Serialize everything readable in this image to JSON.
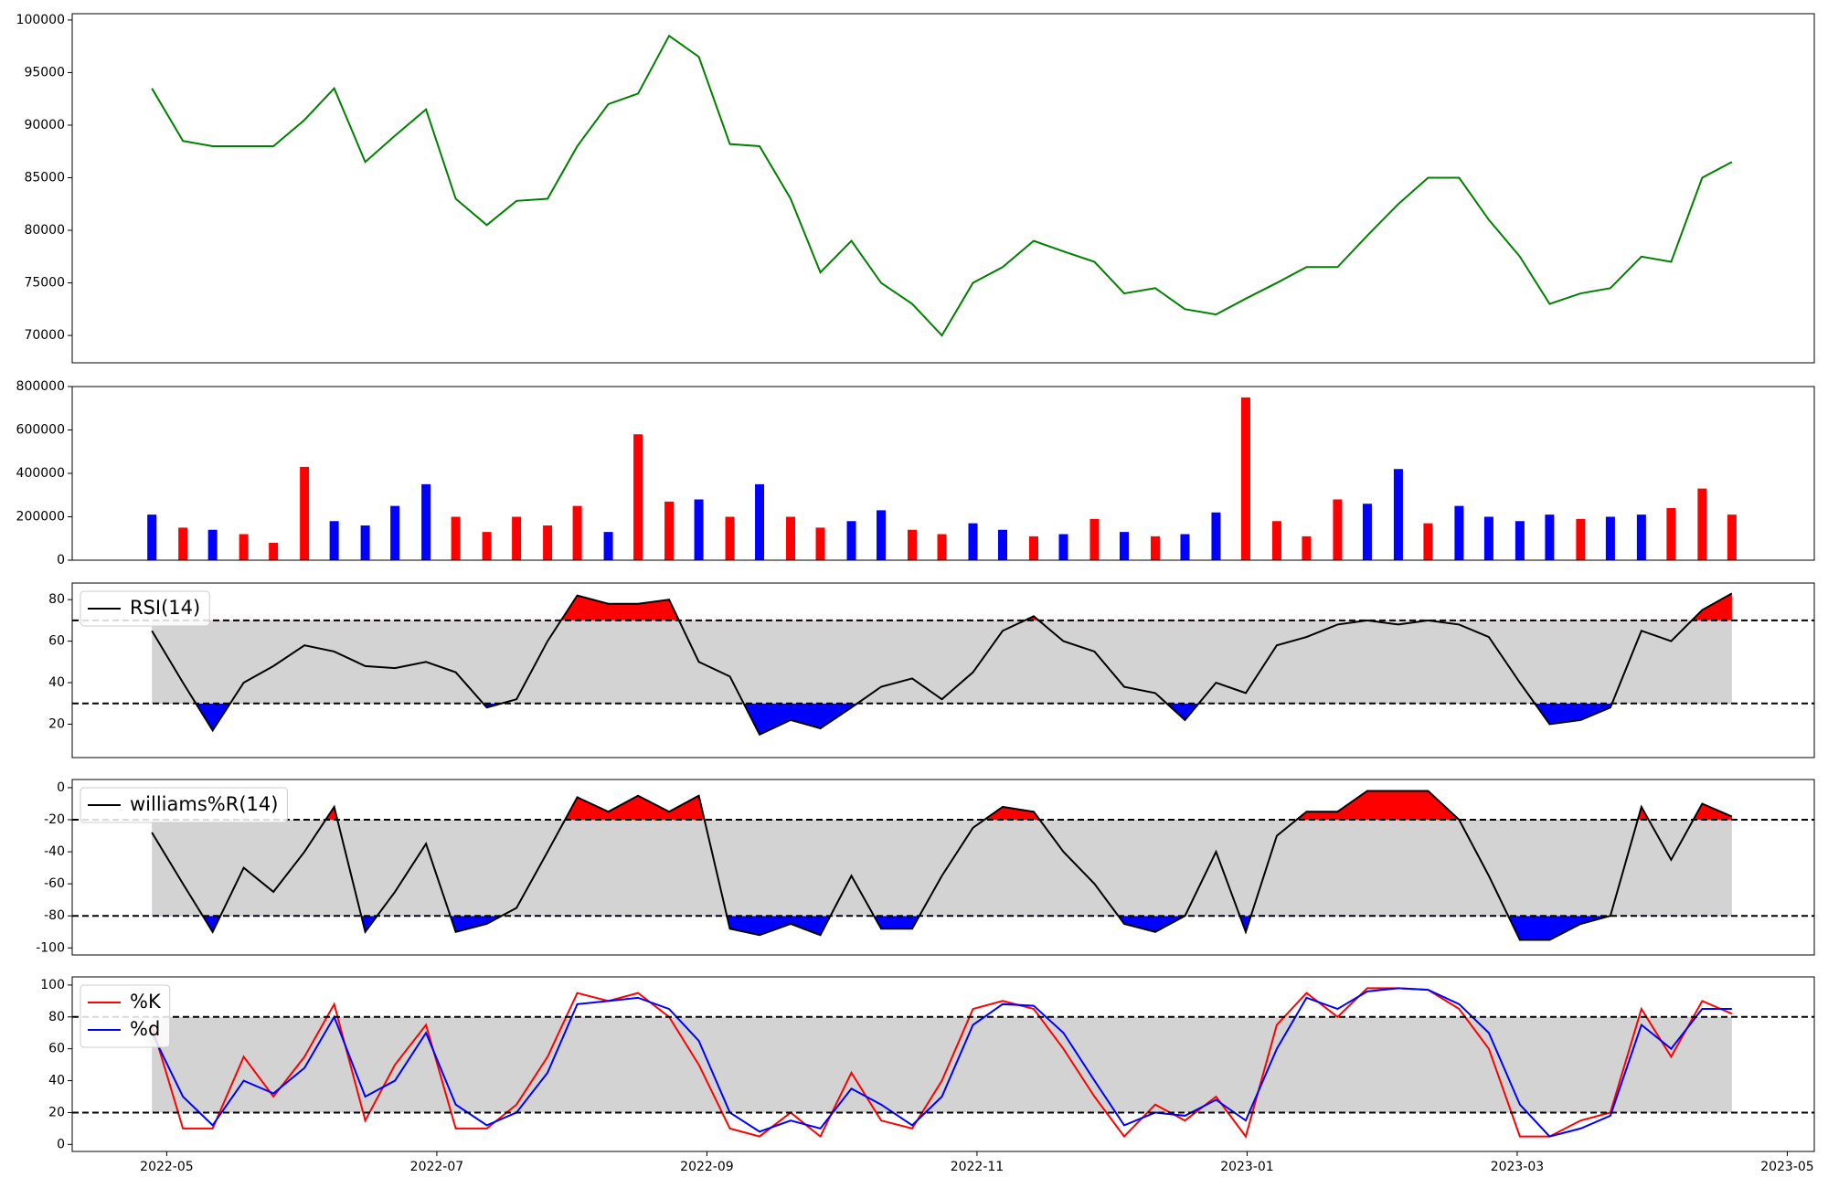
{
  "chart_data": [
    {
      "type": "line",
      "xlim": [
        -0.7,
        12.2
      ],
      "ylim": [
        67400,
        100600
      ],
      "yticks": [
        70000,
        75000,
        80000,
        85000,
        90000,
        95000,
        100000
      ],
      "x": [
        -0.11,
        0.12,
        0.34,
        0.57,
        0.79,
        1.02,
        1.24,
        1.47,
        1.69,
        1.92,
        2.14,
        2.37,
        2.59,
        2.82,
        3.04,
        3.27,
        3.49,
        3.72,
        3.94,
        4.17,
        4.39,
        4.62,
        4.84,
        5.07,
        5.29,
        5.52,
        5.74,
        5.97,
        6.19,
        6.42,
        6.64,
        6.87,
        7.09,
        7.32,
        7.54,
        7.77,
        7.99,
        8.22,
        8.44,
        8.67,
        8.89,
        9.12,
        9.34,
        9.57,
        9.79,
        10.02,
        10.24,
        10.47,
        10.69,
        10.92,
        11.14,
        11.37,
        11.59
      ],
      "series": [
        {
          "color": "#008000",
          "values": [
            93500,
            88500,
            88000,
            88000,
            88000,
            90500,
            93500,
            86500,
            89000,
            91500,
            83000,
            80500,
            82800,
            83000,
            88000,
            92000,
            93000,
            98500,
            96500,
            88200,
            88000,
            83000,
            76000,
            79000,
            75000,
            73000,
            70000,
            75000,
            76500,
            79000,
            78000,
            77000,
            74000,
            74500,
            72500,
            72000,
            73500,
            75000,
            76500,
            76500,
            79500,
            82500,
            85000,
            85000,
            81000,
            77500,
            73000,
            74000,
            74500,
            77500,
            77000,
            85000,
            86500
          ]
        }
      ]
    },
    {
      "type": "bar",
      "xlim": [
        -0.7,
        12.2
      ],
      "ylim": [
        0,
        800000
      ],
      "yticks": [
        0,
        200000,
        400000,
        600000,
        800000
      ],
      "x": [
        -0.11,
        0.12,
        0.34,
        0.57,
        0.79,
        1.02,
        1.24,
        1.47,
        1.69,
        1.92,
        2.14,
        2.37,
        2.59,
        2.82,
        3.04,
        3.27,
        3.49,
        3.72,
        3.94,
        4.17,
        4.39,
        4.62,
        4.84,
        5.07,
        5.29,
        5.52,
        5.74,
        5.97,
        6.19,
        6.42,
        6.64,
        6.87,
        7.09,
        7.32,
        7.54,
        7.77,
        7.99,
        8.22,
        8.44,
        8.67,
        8.89,
        9.12,
        9.34,
        9.57,
        9.79,
        10.02,
        10.24,
        10.47,
        10.69,
        10.92,
        11.14,
        11.37,
        11.59
      ],
      "series": [
        {
          "values": [
            210000,
            150000,
            140000,
            120000,
            80000,
            430000,
            180000,
            160000,
            250000,
            350000,
            200000,
            130000,
            200000,
            160000,
            250000,
            130000,
            580000,
            270000,
            280000,
            200000,
            350000,
            200000,
            150000,
            180000,
            230000,
            140000,
            120000,
            170000,
            140000,
            110000,
            120000,
            190000,
            130000,
            110000,
            120000,
            220000,
            750000,
            180000,
            110000,
            280000,
            260000,
            420000,
            170000,
            250000,
            200000,
            180000,
            210000,
            190000,
            200000,
            210000,
            240000,
            330000,
            210000
          ],
          "colors": [
            "#0000ff",
            "#ff0000",
            "#0000ff",
            "#ff0000",
            "#ff0000",
            "#ff0000",
            "#0000ff",
            "#0000ff",
            "#0000ff",
            "#0000ff",
            "#ff0000",
            "#ff0000",
            "#ff0000",
            "#ff0000",
            "#ff0000",
            "#0000ff",
            "#ff0000",
            "#ff0000",
            "#0000ff",
            "#ff0000",
            "#0000ff",
            "#ff0000",
            "#ff0000",
            "#0000ff",
            "#0000ff",
            "#ff0000",
            "#ff0000",
            "#0000ff",
            "#0000ff",
            "#ff0000",
            "#0000ff",
            "#ff0000",
            "#0000ff",
            "#ff0000",
            "#0000ff",
            "#0000ff",
            "#ff0000",
            "#ff0000",
            "#ff0000",
            "#ff0000",
            "#0000ff",
            "#0000ff",
            "#ff0000",
            "#0000ff",
            "#0000ff",
            "#0000ff",
            "#0000ff",
            "#ff0000",
            "#0000ff",
            "#0000ff",
            "#ff0000",
            "#ff0000",
            "#ff0000"
          ]
        }
      ]
    },
    {
      "type": "line",
      "xlim": [
        -0.7,
        12.2
      ],
      "ylim": [
        3.9,
        88
      ],
      "yticks": [
        20,
        40,
        60,
        80
      ],
      "levels": [
        30,
        70
      ],
      "band_color": "#d3d3d3",
      "fill_colors": [
        "#0000ff",
        "#ff0000"
      ],
      "legend": "upper left",
      "x": [
        -0.11,
        0.12,
        0.34,
        0.57,
        0.79,
        1.02,
        1.24,
        1.47,
        1.69,
        1.92,
        2.14,
        2.37,
        2.59,
        2.82,
        3.04,
        3.27,
        3.49,
        3.72,
        3.94,
        4.17,
        4.39,
        4.62,
        4.84,
        5.07,
        5.29,
        5.52,
        5.74,
        5.97,
        6.19,
        6.42,
        6.64,
        6.87,
        7.09,
        7.32,
        7.54,
        7.77,
        7.99,
        8.22,
        8.44,
        8.67,
        8.89,
        9.12,
        9.34,
        9.57,
        9.79,
        10.02,
        10.24,
        10.47,
        10.69,
        10.92,
        11.14,
        11.37,
        11.59
      ],
      "series": [
        {
          "name": "RSI(14)",
          "color": "#000000",
          "values": [
            65,
            40,
            17,
            40,
            48,
            58,
            55,
            48,
            47,
            50,
            45,
            28,
            32,
            60,
            82,
            78,
            78,
            80,
            50,
            43,
            15,
            22,
            18,
            28,
            38,
            42,
            32,
            45,
            65,
            72,
            60,
            55,
            38,
            35,
            22,
            40,
            35,
            58,
            62,
            68,
            70,
            68,
            70,
            68,
            62,
            40,
            20,
            22,
            28,
            65,
            60,
            75,
            83
          ]
        }
      ]
    },
    {
      "type": "line",
      "xlim": [
        -0.7,
        12.2
      ],
      "ylim": [
        -104.4,
        5.1
      ],
      "yticks": [
        -100,
        -80,
        -60,
        -40,
        -20,
        0
      ],
      "levels": [
        -80,
        -20
      ],
      "band_color": "#d3d3d3",
      "fill_colors": [
        "#0000ff",
        "#ff0000"
      ],
      "legend": "upper left",
      "x": [
        -0.11,
        0.12,
        0.34,
        0.57,
        0.79,
        1.02,
        1.24,
        1.47,
        1.69,
        1.92,
        2.14,
        2.37,
        2.59,
        2.82,
        3.04,
        3.27,
        3.49,
        3.72,
        3.94,
        4.17,
        4.39,
        4.62,
        4.84,
        5.07,
        5.29,
        5.52,
        5.74,
        5.97,
        6.19,
        6.42,
        6.64,
        6.87,
        7.09,
        7.32,
        7.54,
        7.77,
        7.99,
        8.22,
        8.44,
        8.67,
        8.89,
        9.12,
        9.34,
        9.57,
        9.79,
        10.02,
        10.24,
        10.47,
        10.69,
        10.92,
        11.14,
        11.37,
        11.59
      ],
      "series": [
        {
          "name": "williams%R(14)",
          "color": "#000000",
          "values": [
            -28,
            -60,
            -90,
            -50,
            -65,
            -40,
            -12,
            -90,
            -65,
            -35,
            -90,
            -85,
            -75,
            -40,
            -6,
            -15,
            -5,
            -15,
            -5,
            -88,
            -92,
            -85,
            -92,
            -55,
            -88,
            -88,
            -55,
            -25,
            -12,
            -15,
            -40,
            -60,
            -85,
            -90,
            -80,
            -40,
            -90,
            -30,
            -15,
            -15,
            -2,
            -2,
            -2,
            -20,
            -55,
            -95,
            -95,
            -85,
            -80,
            -12,
            -45,
            -10,
            -18
          ]
        }
      ]
    },
    {
      "type": "line",
      "xlim": [
        -0.7,
        12.2
      ],
      "ylim": [
        -4.4,
        105.1
      ],
      "yticks": [
        0,
        20,
        40,
        60,
        80,
        100
      ],
      "levels": [
        20,
        80
      ],
      "band_color": "#d3d3d3",
      "legend": "upper left",
      "xticks": [
        {
          "value": 0,
          "label": "2022-05"
        },
        {
          "value": 2,
          "label": "2022-07"
        },
        {
          "value": 4,
          "label": "2022-09"
        },
        {
          "value": 6,
          "label": "2022-11"
        },
        {
          "value": 8,
          "label": "2023-01"
        },
        {
          "value": 10,
          "label": "2023-03"
        },
        {
          "value": 12,
          "label": "2023-05"
        }
      ],
      "x": [
        -0.11,
        0.12,
        0.34,
        0.57,
        0.79,
        1.02,
        1.24,
        1.47,
        1.69,
        1.92,
        2.14,
        2.37,
        2.59,
        2.82,
        3.04,
        3.27,
        3.49,
        3.72,
        3.94,
        4.17,
        4.39,
        4.62,
        4.84,
        5.07,
        5.29,
        5.52,
        5.74,
        5.97,
        6.19,
        6.42,
        6.64,
        6.87,
        7.09,
        7.32,
        7.54,
        7.77,
        7.99,
        8.22,
        8.44,
        8.67,
        8.89,
        9.12,
        9.34,
        9.57,
        9.79,
        10.02,
        10.24,
        10.47,
        10.69,
        10.92,
        11.14,
        11.37,
        11.59
      ],
      "series": [
        {
          "name": "%K",
          "color": "#ff0000",
          "values": [
            75,
            10,
            10,
            55,
            30,
            55,
            88,
            15,
            50,
            75,
            10,
            10,
            25,
            55,
            95,
            90,
            95,
            80,
            50,
            10,
            5,
            20,
            5,
            45,
            15,
            10,
            40,
            85,
            90,
            85,
            60,
            30,
            5,
            25,
            15,
            30,
            5,
            75,
            95,
            80,
            98,
            98,
            97,
            85,
            60,
            5,
            5,
            15,
            20,
            85,
            55,
            90,
            82
          ]
        },
        {
          "name": "%d",
          "color": "#0000ff",
          "values": [
            70,
            30,
            12,
            40,
            32,
            48,
            80,
            30,
            40,
            70,
            25,
            12,
            20,
            45,
            88,
            90,
            92,
            85,
            65,
            20,
            8,
            15,
            10,
            35,
            25,
            12,
            30,
            75,
            88,
            87,
            70,
            40,
            12,
            20,
            18,
            28,
            15,
            60,
            92,
            85,
            96,
            98,
            97,
            88,
            70,
            25,
            5,
            10,
            18,
            75,
            60,
            85,
            85
          ]
        }
      ]
    }
  ]
}
